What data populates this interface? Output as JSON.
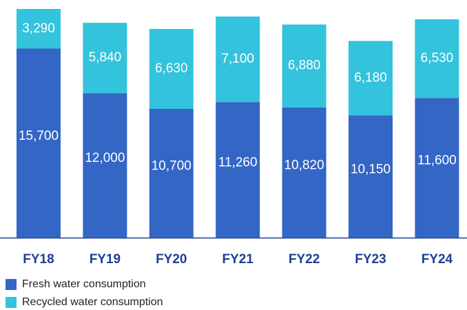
{
  "chart_data": {
    "type": "stacked-bar",
    "categories": [
      "FY18",
      "FY19",
      "FY20",
      "FY21",
      "FY22",
      "FY23",
      "FY24"
    ],
    "series": [
      {
        "name": "Fresh water consumption",
        "color": "#3366c5",
        "values": [
          15700,
          12000,
          10700,
          11260,
          10820,
          10150,
          11600
        ],
        "value_labels": [
          "15,700",
          "12,000",
          "10,700",
          "11,260",
          "10,820",
          "10,150",
          "11,600"
        ]
      },
      {
        "name": "Recycled water consumption",
        "color": "#33c3dd",
        "values": [
          3290,
          5840,
          6630,
          7100,
          6880,
          6180,
          6530
        ],
        "value_labels": [
          "3,290",
          "5,840",
          "6,630",
          "7,100",
          "6,880",
          "6,180",
          "6,530"
        ]
      }
    ]
  }
}
